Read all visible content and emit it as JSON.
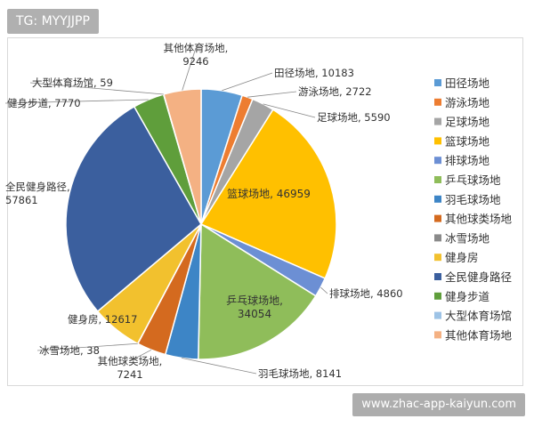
{
  "header": {
    "tag": "TG: MYYJJPP"
  },
  "footer": {
    "watermark": "www.zhac-app-kaiyun.com"
  },
  "chart_data": {
    "type": "pie",
    "title": "",
    "legend_position": "right",
    "series": [
      {
        "name": "田径场地",
        "value": 10183,
        "label": "田径场地, 10183",
        "color": "#5b9bd5"
      },
      {
        "name": "游泳场地",
        "value": 2722,
        "label": "游泳场地, 2722",
        "color": "#ed7d31"
      },
      {
        "name": "足球场地",
        "value": 5590,
        "label": "足球场地, 5590",
        "color": "#a5a5a5"
      },
      {
        "name": "篮球场地",
        "value": 46959,
        "label": "篮球场地, 46959",
        "color": "#ffc000"
      },
      {
        "name": "排球场地",
        "value": 4860,
        "label": "排球场地, 4860",
        "color": "#6c8fd4"
      },
      {
        "name": "乒乓球场地",
        "value": 34054,
        "label": "乒乓球场地, 34054",
        "color": "#8fbd5a"
      },
      {
        "name": "羽毛球场地",
        "value": 8141,
        "label": "羽毛球场地, 8141",
        "color": "#3d85c6"
      },
      {
        "name": "其他球类场地",
        "value": 7241,
        "label": "其他球类场地, 7241",
        "color": "#d46a1f"
      },
      {
        "name": "冰雪场地",
        "value": 38,
        "label": "冰雪场地, 38",
        "color": "#8a8a8a"
      },
      {
        "name": "健身房",
        "value": 12617,
        "label": "健身房, 12617",
        "color": "#f2c12e"
      },
      {
        "name": "全民健身路径",
        "value": 57861,
        "label": "全民健身路径, 57861",
        "color": "#3b5f9e"
      },
      {
        "name": "健身步道",
        "value": 7770,
        "label": "健身步道, 7770",
        "color": "#5f9e3b"
      },
      {
        "name": "大型体育场馆",
        "value": 59,
        "label": "大型体育场馆, 59",
        "color": "#9dc3e6"
      },
      {
        "name": "其他体育场地",
        "value": 9246,
        "label": "其他体育场地, 9246",
        "color": "#f4b183"
      }
    ]
  }
}
